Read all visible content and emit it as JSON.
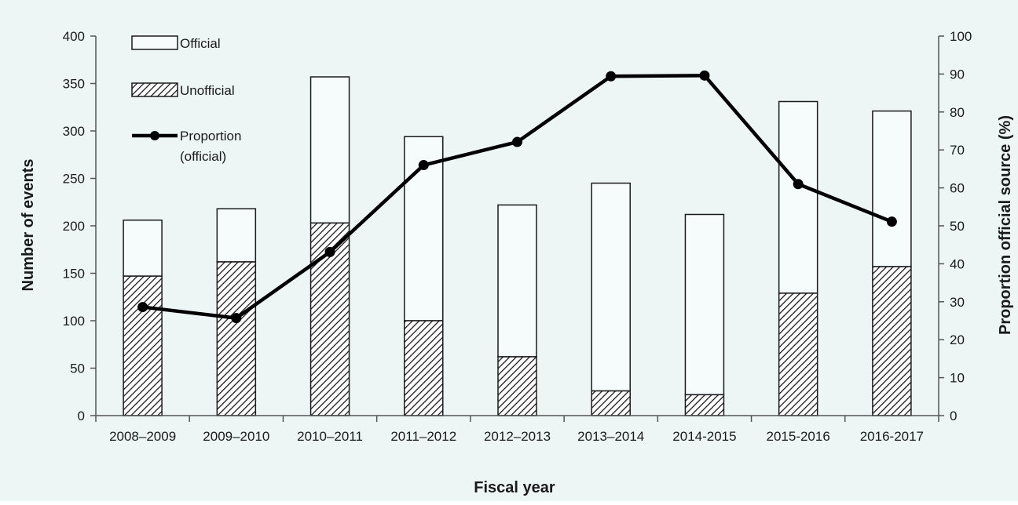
{
  "colors": {
    "panel_background": "#eef5f5",
    "bar_fill_official": "#f6fbfb",
    "bar_stroke": "#1a1a1a",
    "hatch": "#1a1a1a",
    "line": "#000000",
    "axis": "#555555"
  },
  "chart_data": {
    "type": "bar",
    "stacked": true,
    "categories": [
      "2008–2009",
      "2009–2010",
      "2010–2011",
      "2011–2012",
      "2012–2013",
      "2013–2014",
      "2014-2015",
      "2015-2016",
      "2016-2017"
    ],
    "series": [
      {
        "name": "Unofficial",
        "type": "bar",
        "pattern": "hatched",
        "axis": "left",
        "values": [
          147,
          162,
          203,
          100,
          62,
          26,
          22,
          129,
          157
        ]
      },
      {
        "name": "Official",
        "type": "bar",
        "pattern": "solid-light",
        "axis": "left",
        "values": [
          59,
          56,
          154,
          194,
          160,
          219,
          190,
          202,
          164
        ]
      },
      {
        "name_lines": [
          "Proportion",
          "(official)"
        ],
        "type": "line",
        "marker": "circle",
        "axis": "right",
        "values": [
          28.6,
          25.7,
          43.1,
          66.0,
          72.1,
          89.4,
          89.6,
          61.0,
          51.1
        ]
      }
    ],
    "xlabel": "Fiscal year",
    "ylabel": "Number of events",
    "y2label": "Proportion official source (%)",
    "ylim": [
      0,
      400
    ],
    "y2lim": [
      0,
      100
    ],
    "yticks": [
      0,
      50,
      100,
      150,
      200,
      250,
      300,
      350,
      400
    ],
    "y2ticks": [
      0,
      10,
      20,
      30,
      40,
      50,
      60,
      70,
      80,
      90,
      100
    ],
    "grid": false,
    "legend_position": "top-left"
  }
}
